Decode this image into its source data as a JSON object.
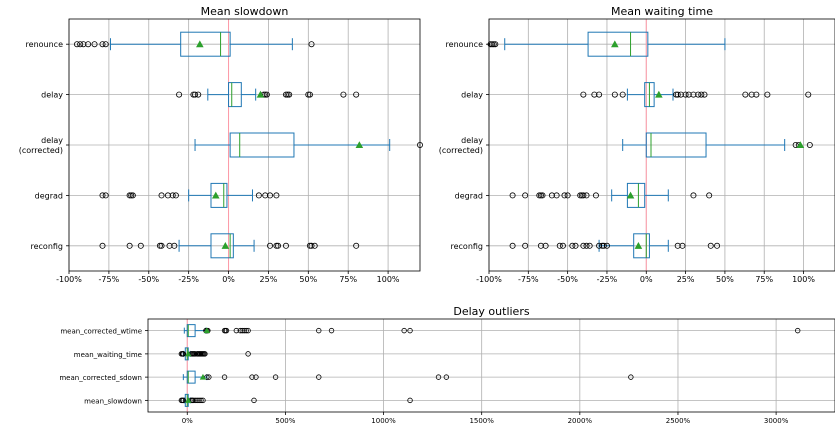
{
  "chart_data": [
    {
      "type": "box",
      "title": "Mean slowdown",
      "xlim": [
        -100,
        120
      ],
      "xticks": [
        "-100%",
        "-75%",
        "-50%",
        "-25%",
        "0%",
        "25%",
        "50%",
        "75%",
        "100%"
      ],
      "xtick_values": [
        -100,
        -75,
        -50,
        -25,
        0,
        25,
        50,
        75,
        100
      ],
      "categories": [
        "renounce",
        "delay",
        "delay\n(corrected)",
        "degrad",
        "reconfig"
      ],
      "category_lines": [
        [
          "renounce"
        ],
        [
          "delay"
        ],
        [
          "delay",
          "(corrected)"
        ],
        [
          "degrad"
        ],
        [
          "reconfig"
        ]
      ],
      "boxes": [
        {
          "whislo": -74,
          "q1": -30,
          "med": -5,
          "q3": 1,
          "whishi": 40,
          "mean": -18,
          "fliers": [
            -95,
            -93,
            -91,
            -88,
            -84,
            -79,
            -77,
            52
          ]
        },
        {
          "whislo": -13,
          "q1": 0,
          "med": 2,
          "q3": 8,
          "whishi": 17,
          "mean": 20,
          "fliers": [
            -31,
            -22,
            -21,
            -19,
            22,
            23,
            24,
            36,
            37,
            38,
            50,
            51,
            72,
            80
          ]
        },
        {
          "whislo": -21,
          "q1": 1,
          "med": 7,
          "q3": 41,
          "whishi": 101,
          "mean": 82,
          "fliers": [
            120
          ]
        },
        {
          "whislo": -25,
          "q1": -11,
          "med": -3,
          "q3": -1,
          "whishi": 15,
          "mean": -8,
          "fliers": [
            -79,
            -77,
            -62,
            -61,
            -60,
            -42,
            -38,
            -35,
            -33,
            19,
            23,
            26,
            30
          ]
        },
        {
          "whislo": -31,
          "q1": -11,
          "med": 1,
          "q3": 3,
          "whishi": 16,
          "mean": -2,
          "fliers": [
            -79,
            -62,
            -55,
            -43,
            -42,
            -37,
            -34,
            26,
            30,
            31,
            36,
            51,
            52,
            54,
            80
          ]
        }
      ]
    },
    {
      "type": "box",
      "title": "Mean waiting time",
      "xlim": [
        -100,
        120
      ],
      "xticks": [
        "-100%",
        "-75%",
        "-50%",
        "-25%",
        "0%",
        "25%",
        "50%",
        "75%",
        "100%"
      ],
      "xtick_values": [
        -100,
        -75,
        -50,
        -25,
        0,
        25,
        50,
        75,
        100
      ],
      "categories": [
        "renounce",
        "delay",
        "delay\n(corrected)",
        "degrad",
        "reconfig"
      ],
      "category_lines": [
        [
          "renounce"
        ],
        [
          "delay"
        ],
        [
          "delay",
          "(corrected)"
        ],
        [
          "degrad"
        ],
        [
          "reconfig"
        ]
      ],
      "boxes": [
        {
          "whislo": -90,
          "q1": -37,
          "med": -10,
          "q3": 1,
          "whishi": 50,
          "mean": -20,
          "fliers": [
            -99,
            -98,
            -97,
            -96
          ]
        },
        {
          "whislo": -12,
          "q1": -1,
          "med": 2,
          "q3": 5,
          "whishi": 17,
          "mean": 8,
          "fliers": [
            -40,
            -33,
            -30,
            -20,
            -15,
            19,
            20,
            22,
            25,
            27,
            30,
            33,
            35,
            37,
            63,
            67,
            70,
            77,
            103
          ]
        },
        {
          "whislo": -15,
          "q1": 0,
          "med": 3,
          "q3": 38,
          "whishi": 88,
          "mean": 98,
          "fliers": [
            95,
            97,
            104
          ]
        },
        {
          "whislo": -22,
          "q1": -12,
          "med": -5,
          "q3": -1,
          "whishi": 14,
          "mean": -10,
          "fliers": [
            -85,
            -77,
            -68,
            -67,
            -66,
            -60,
            -57,
            -52,
            -50,
            -42,
            -41,
            -40,
            -38,
            -32,
            30,
            40
          ]
        },
        {
          "whislo": -30,
          "q1": -8,
          "med": 0,
          "q3": 2,
          "whishi": 14,
          "mean": -5,
          "fliers": [
            -85,
            -77,
            -67,
            -64,
            -55,
            -53,
            -47,
            -45,
            -40,
            -38,
            -36,
            -30,
            -28,
            -27,
            -25,
            20,
            23,
            41,
            45
          ]
        }
      ]
    },
    {
      "type": "box",
      "title": "Delay outliers",
      "xlim": [
        -200,
        3300
      ],
      "xticks": [
        "0%",
        "500%",
        "1000%",
        "1500%",
        "2000%",
        "2500%",
        "3000%"
      ],
      "xtick_values": [
        0,
        500,
        1000,
        1500,
        2000,
        2500,
        3000
      ],
      "categories": [
        "mean_corrected_wtime",
        "mean_waiting_time",
        "mean_corrected_sdown",
        "mean_slowdown"
      ],
      "category_lines": [
        [
          "mean_corrected_wtime"
        ],
        [
          "mean_waiting_time"
        ],
        [
          "mean_corrected_sdown"
        ],
        [
          "mean_slowdown"
        ]
      ],
      "boxes": [
        {
          "whislo": -15,
          "q1": 0,
          "med": 5,
          "q3": 40,
          "whishi": 95,
          "mean": 100,
          "fliers": [
            95,
            100,
            105,
            190,
            195,
            200,
            250,
            270,
            280,
            290,
            300,
            310,
            670,
            735,
            1105,
            1135,
            3110
          ]
        },
        {
          "whislo": -20,
          "q1": -10,
          "med": 0,
          "q3": 5,
          "whishi": 15,
          "mean": 5,
          "fliers": [
            -30,
            -25,
            -22,
            -20,
            20,
            25,
            30,
            35,
            40,
            50,
            55,
            60,
            65,
            70,
            75,
            80,
            85,
            90,
            310
          ]
        },
        {
          "whislo": -20,
          "q1": 0,
          "med": 5,
          "q3": 40,
          "whishi": 100,
          "mean": 80,
          "fliers": [
            100,
            110,
            190,
            330,
            350,
            450,
            670,
            1280,
            1320,
            2260
          ]
        },
        {
          "whislo": -15,
          "q1": -10,
          "med": 0,
          "q3": 5,
          "whishi": 15,
          "mean": 5,
          "fliers": [
            -30,
            -25,
            -20,
            20,
            25,
            30,
            40,
            50,
            60,
            70,
            80,
            340,
            1135
          ]
        }
      ]
    }
  ]
}
